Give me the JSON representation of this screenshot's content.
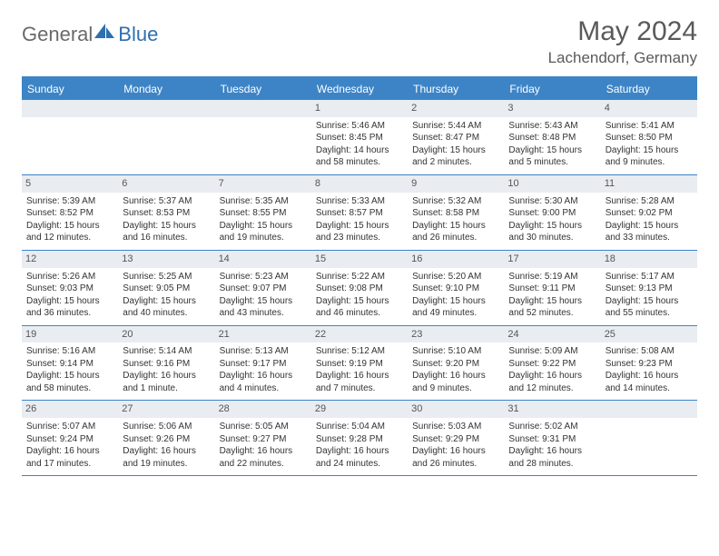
{
  "brand": {
    "general": "General",
    "blue": "Blue"
  },
  "title": "May 2024",
  "location": "Lachendorf, Germany",
  "colors": {
    "header_bg": "#3d84c6",
    "header_text": "#ffffff",
    "daynum_bg": "#e9edf1",
    "body_text": "#333333",
    "title_text": "#5a5a5a",
    "rule": "#3d84c6"
  },
  "daysOfWeek": [
    "Sunday",
    "Monday",
    "Tuesday",
    "Wednesday",
    "Thursday",
    "Friday",
    "Saturday"
  ],
  "weeks": [
    [
      {
        "n": "",
        "sunrise": "",
        "sunset": "",
        "daylight": ""
      },
      {
        "n": "",
        "sunrise": "",
        "sunset": "",
        "daylight": ""
      },
      {
        "n": "",
        "sunrise": "",
        "sunset": "",
        "daylight": ""
      },
      {
        "n": "1",
        "sunrise": "Sunrise: 5:46 AM",
        "sunset": "Sunset: 8:45 PM",
        "daylight": "Daylight: 14 hours and 58 minutes."
      },
      {
        "n": "2",
        "sunrise": "Sunrise: 5:44 AM",
        "sunset": "Sunset: 8:47 PM",
        "daylight": "Daylight: 15 hours and 2 minutes."
      },
      {
        "n": "3",
        "sunrise": "Sunrise: 5:43 AM",
        "sunset": "Sunset: 8:48 PM",
        "daylight": "Daylight: 15 hours and 5 minutes."
      },
      {
        "n": "4",
        "sunrise": "Sunrise: 5:41 AM",
        "sunset": "Sunset: 8:50 PM",
        "daylight": "Daylight: 15 hours and 9 minutes."
      }
    ],
    [
      {
        "n": "5",
        "sunrise": "Sunrise: 5:39 AM",
        "sunset": "Sunset: 8:52 PM",
        "daylight": "Daylight: 15 hours and 12 minutes."
      },
      {
        "n": "6",
        "sunrise": "Sunrise: 5:37 AM",
        "sunset": "Sunset: 8:53 PM",
        "daylight": "Daylight: 15 hours and 16 minutes."
      },
      {
        "n": "7",
        "sunrise": "Sunrise: 5:35 AM",
        "sunset": "Sunset: 8:55 PM",
        "daylight": "Daylight: 15 hours and 19 minutes."
      },
      {
        "n": "8",
        "sunrise": "Sunrise: 5:33 AM",
        "sunset": "Sunset: 8:57 PM",
        "daylight": "Daylight: 15 hours and 23 minutes."
      },
      {
        "n": "9",
        "sunrise": "Sunrise: 5:32 AM",
        "sunset": "Sunset: 8:58 PM",
        "daylight": "Daylight: 15 hours and 26 minutes."
      },
      {
        "n": "10",
        "sunrise": "Sunrise: 5:30 AM",
        "sunset": "Sunset: 9:00 PM",
        "daylight": "Daylight: 15 hours and 30 minutes."
      },
      {
        "n": "11",
        "sunrise": "Sunrise: 5:28 AM",
        "sunset": "Sunset: 9:02 PM",
        "daylight": "Daylight: 15 hours and 33 minutes."
      }
    ],
    [
      {
        "n": "12",
        "sunrise": "Sunrise: 5:26 AM",
        "sunset": "Sunset: 9:03 PM",
        "daylight": "Daylight: 15 hours and 36 minutes."
      },
      {
        "n": "13",
        "sunrise": "Sunrise: 5:25 AM",
        "sunset": "Sunset: 9:05 PM",
        "daylight": "Daylight: 15 hours and 40 minutes."
      },
      {
        "n": "14",
        "sunrise": "Sunrise: 5:23 AM",
        "sunset": "Sunset: 9:07 PM",
        "daylight": "Daylight: 15 hours and 43 minutes."
      },
      {
        "n": "15",
        "sunrise": "Sunrise: 5:22 AM",
        "sunset": "Sunset: 9:08 PM",
        "daylight": "Daylight: 15 hours and 46 minutes."
      },
      {
        "n": "16",
        "sunrise": "Sunrise: 5:20 AM",
        "sunset": "Sunset: 9:10 PM",
        "daylight": "Daylight: 15 hours and 49 minutes."
      },
      {
        "n": "17",
        "sunrise": "Sunrise: 5:19 AM",
        "sunset": "Sunset: 9:11 PM",
        "daylight": "Daylight: 15 hours and 52 minutes."
      },
      {
        "n": "18",
        "sunrise": "Sunrise: 5:17 AM",
        "sunset": "Sunset: 9:13 PM",
        "daylight": "Daylight: 15 hours and 55 minutes."
      }
    ],
    [
      {
        "n": "19",
        "sunrise": "Sunrise: 5:16 AM",
        "sunset": "Sunset: 9:14 PM",
        "daylight": "Daylight: 15 hours and 58 minutes."
      },
      {
        "n": "20",
        "sunrise": "Sunrise: 5:14 AM",
        "sunset": "Sunset: 9:16 PM",
        "daylight": "Daylight: 16 hours and 1 minute."
      },
      {
        "n": "21",
        "sunrise": "Sunrise: 5:13 AM",
        "sunset": "Sunset: 9:17 PM",
        "daylight": "Daylight: 16 hours and 4 minutes."
      },
      {
        "n": "22",
        "sunrise": "Sunrise: 5:12 AM",
        "sunset": "Sunset: 9:19 PM",
        "daylight": "Daylight: 16 hours and 7 minutes."
      },
      {
        "n": "23",
        "sunrise": "Sunrise: 5:10 AM",
        "sunset": "Sunset: 9:20 PM",
        "daylight": "Daylight: 16 hours and 9 minutes."
      },
      {
        "n": "24",
        "sunrise": "Sunrise: 5:09 AM",
        "sunset": "Sunset: 9:22 PM",
        "daylight": "Daylight: 16 hours and 12 minutes."
      },
      {
        "n": "25",
        "sunrise": "Sunrise: 5:08 AM",
        "sunset": "Sunset: 9:23 PM",
        "daylight": "Daylight: 16 hours and 14 minutes."
      }
    ],
    [
      {
        "n": "26",
        "sunrise": "Sunrise: 5:07 AM",
        "sunset": "Sunset: 9:24 PM",
        "daylight": "Daylight: 16 hours and 17 minutes."
      },
      {
        "n": "27",
        "sunrise": "Sunrise: 5:06 AM",
        "sunset": "Sunset: 9:26 PM",
        "daylight": "Daylight: 16 hours and 19 minutes."
      },
      {
        "n": "28",
        "sunrise": "Sunrise: 5:05 AM",
        "sunset": "Sunset: 9:27 PM",
        "daylight": "Daylight: 16 hours and 22 minutes."
      },
      {
        "n": "29",
        "sunrise": "Sunrise: 5:04 AM",
        "sunset": "Sunset: 9:28 PM",
        "daylight": "Daylight: 16 hours and 24 minutes."
      },
      {
        "n": "30",
        "sunrise": "Sunrise: 5:03 AM",
        "sunset": "Sunset: 9:29 PM",
        "daylight": "Daylight: 16 hours and 26 minutes."
      },
      {
        "n": "31",
        "sunrise": "Sunrise: 5:02 AM",
        "sunset": "Sunset: 9:31 PM",
        "daylight": "Daylight: 16 hours and 28 minutes."
      },
      {
        "n": "",
        "sunrise": "",
        "sunset": "",
        "daylight": ""
      }
    ]
  ]
}
